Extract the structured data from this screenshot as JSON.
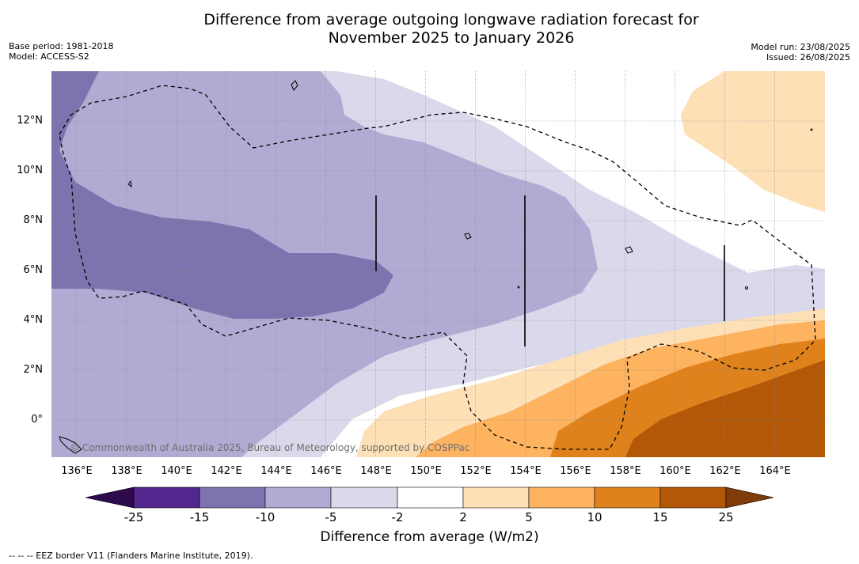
{
  "title_line1": "Difference from average outgoing longwave radiation forecast for",
  "title_line2": "November 2025 to January 2026",
  "meta_left": [
    "Base period: 1981-2018",
    "Model: ACCESS-S2"
  ],
  "meta_right": [
    "Model run: 23/08/2025",
    "Issued: 26/08/2025"
  ],
  "map": {
    "lon_range": [
      135,
      166
    ],
    "lat_range": [
      -1.5,
      14
    ],
    "lat_labels": [
      {
        "text": "12°N",
        "value": 12
      },
      {
        "text": "10°N",
        "value": 10
      },
      {
        "text": "8°N",
        "value": 8
      },
      {
        "text": "6°N",
        "value": 6
      },
      {
        "text": "4°N",
        "value": 4
      },
      {
        "text": "2°N",
        "value": 2
      },
      {
        "text": "0°",
        "value": 0
      }
    ],
    "lon_labels": [
      {
        "text": "136°E",
        "value": 136
      },
      {
        "text": "138°E",
        "value": 138
      },
      {
        "text": "140°E",
        "value": 140
      },
      {
        "text": "142°E",
        "value": 142
      },
      {
        "text": "144°E",
        "value": 144
      },
      {
        "text": "146°E",
        "value": 146
      },
      {
        "text": "148°E",
        "value": 148
      },
      {
        "text": "150°E",
        "value": 150
      },
      {
        "text": "152°E",
        "value": 152
      },
      {
        "text": "154°E",
        "value": 154
      },
      {
        "text": "156°E",
        "value": 156
      },
      {
        "text": "158°E",
        "value": 158
      },
      {
        "text": "160°E",
        "value": 160
      },
      {
        "text": "162°E",
        "value": 162
      },
      {
        "text": "164°E",
        "value": 164
      }
    ],
    "copyright": "© Commonwealth of Australia 2025, Bureau of Meteorology, supported by COSPPac"
  },
  "colorbar": {
    "label": "Difference from average (W/m2)",
    "ticks": [
      "-25",
      "-15",
      "-10",
      "-5",
      "-2",
      "2",
      "5",
      "10",
      "15",
      "25"
    ],
    "colors": {
      "under": "#2d0b4e",
      "bin_m25_m15": "#54278f",
      "bin_m15_m10": "#7e73ae",
      "bin_m10_m5": "#b0abd2",
      "bin_m5_m2": "#d9d9eb",
      "bin_m2_2": "#ffffff",
      "bin_2_5": "#fee0b6",
      "bin_5_10": "#fdb35f",
      "bin_10_15": "#e0821c",
      "bin_15_25": "#b35806",
      "over": "#7f3b08"
    }
  },
  "footnote": "--  --  -- EEZ border V11 (Flanders Marine Institute, 2019)."
}
